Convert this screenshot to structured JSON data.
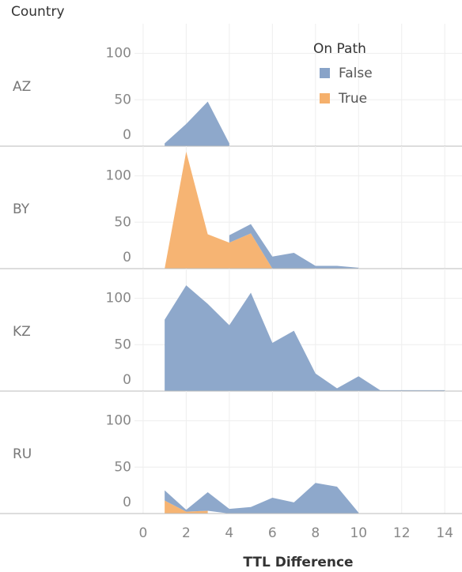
{
  "chart_data": {
    "type": "area",
    "facet_label": "Country",
    "x_label": "TTL Difference",
    "legend_title": "On Path",
    "series": [
      {
        "name": "False",
        "color": "#88a3c8"
      },
      {
        "name": "True",
        "color": "#f5b06c"
      }
    ],
    "xlim": [
      -0.4,
      14.8
    ],
    "xticks": [
      0,
      2,
      4,
      6,
      8,
      10,
      12,
      14
    ],
    "ylim": [
      0,
      132
    ],
    "yticks": [
      0,
      50,
      100
    ],
    "grid": true,
    "panels": [
      {
        "name": "AZ",
        "series": [
          {
            "x": [
              1,
              2,
              3,
              4
            ],
            "values": [
              3,
              24,
              48,
              3
            ]
          },
          {
            "x": [],
            "values": []
          }
        ]
      },
      {
        "name": "BY",
        "series": [
          {
            "x": [
              4,
              5,
              6,
              7,
              8,
              9,
              10
            ],
            "values": [
              8,
              10,
              13,
              17,
              3,
              3,
              1
            ]
          },
          {
            "x": [
              1,
              2,
              3,
              4,
              5,
              6
            ],
            "values": [
              0,
              126,
              37,
              28,
              38,
              0
            ]
          }
        ]
      },
      {
        "name": "KZ",
        "series": [
          {
            "x": [
              1,
              2,
              3,
              4,
              5,
              6,
              7,
              8,
              9,
              10,
              11,
              12,
              13,
              14
            ],
            "values": [
              77,
              114,
              94,
              71,
              106,
              52,
              65,
              19,
              3,
              16,
              1,
              1,
              1,
              1
            ]
          },
          {
            "x": [],
            "values": []
          }
        ]
      },
      {
        "name": "RU",
        "series": [
          {
            "x": [
              1,
              2,
              3,
              4,
              5,
              6,
              7,
              8,
              9,
              10
            ],
            "values": [
              11,
              2,
              20,
              5,
              7,
              17,
              12,
              33,
              29,
              1
            ]
          },
          {
            "x": [
              1,
              2,
              3
            ],
            "values": [
              14,
              2,
              3
            ]
          }
        ]
      }
    ]
  }
}
